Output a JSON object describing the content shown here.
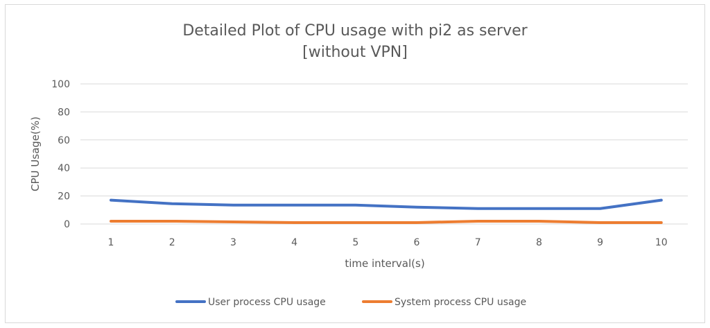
{
  "chart_data": {
    "type": "line",
    "title_line1": "Detailed Plot of CPU usage with pi2 as server",
    "title_line2": "[without VPN]",
    "xlabel": "time interval(s)",
    "ylabel": "CPU Usage(%)",
    "x": [
      1,
      2,
      3,
      4,
      5,
      6,
      7,
      8,
      9,
      10
    ],
    "x_tick_labels": [
      "1",
      "2",
      "3",
      "4",
      "5",
      "6",
      "7",
      "8",
      "9",
      "10"
    ],
    "ylim": [
      0,
      100
    ],
    "y_ticks": [
      0,
      20,
      40,
      60,
      80,
      100
    ],
    "y_tick_labels": [
      "0",
      "20",
      "40",
      "60",
      "80",
      "100"
    ],
    "grid": true,
    "legend_position": "bottom",
    "series": [
      {
        "name": "User process CPU usage",
        "color": "#4472c4",
        "values": [
          17,
          14.5,
          13.5,
          13.5,
          13.5,
          12,
          11,
          11,
          11,
          17
        ]
      },
      {
        "name": "System process CPU usage",
        "color": "#ed7d31",
        "values": [
          2,
          2,
          1.5,
          1,
          1,
          1,
          2,
          2,
          1,
          1
        ]
      }
    ],
    "gridline_color": "#d9d9d9"
  }
}
